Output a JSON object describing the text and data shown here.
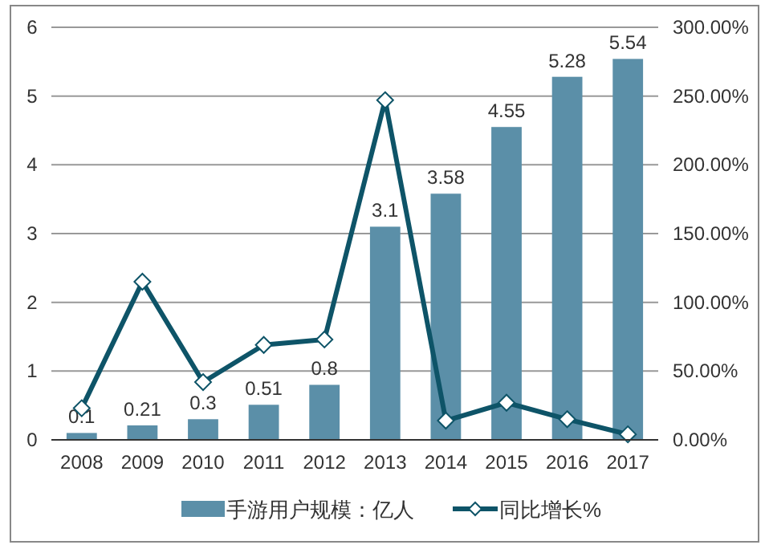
{
  "chart_data": {
    "type": "bar",
    "categories": [
      "2008",
      "2009",
      "2010",
      "2011",
      "2012",
      "2013",
      "2014",
      "2015",
      "2016",
      "2017"
    ],
    "series": [
      {
        "name": "手游用户规模：亿人",
        "color": "#5b8fa8",
        "values": [
          0.1,
          0.21,
          0.3,
          0.51,
          0.8,
          3.1,
          3.58,
          4.55,
          5.28,
          5.54
        ],
        "value_labels": [
          "0.1",
          "0.21",
          "0.3",
          "0.51",
          "0.8",
          "3.1",
          "3.58",
          "4.55",
          "5.28",
          "5.54"
        ]
      },
      {
        "name": "同比增长%",
        "type": "line",
        "axis": "y2",
        "color": "#0e5468",
        "marker": "diamond",
        "values": [
          23,
          115,
          42,
          69,
          73,
          247,
          14,
          27,
          15,
          4
        ]
      }
    ],
    "ylim": [
      0,
      6
    ],
    "yticks": [
      0,
      1,
      2,
      3,
      4,
      5,
      6
    ],
    "y2lim": [
      0,
      300
    ],
    "y2ticks": [
      {
        "value": 0,
        "label": "0.00%"
      },
      {
        "value": 50,
        "label": "50.00%"
      },
      {
        "value": 100,
        "label": "100.00%"
      },
      {
        "value": 150,
        "label": "150.00%"
      },
      {
        "value": 200,
        "label": "200.00%"
      },
      {
        "value": 250,
        "label": "250.00%"
      },
      {
        "value": 300,
        "label": "300.00%"
      }
    ],
    "grid": "y",
    "legend": "bottom"
  }
}
